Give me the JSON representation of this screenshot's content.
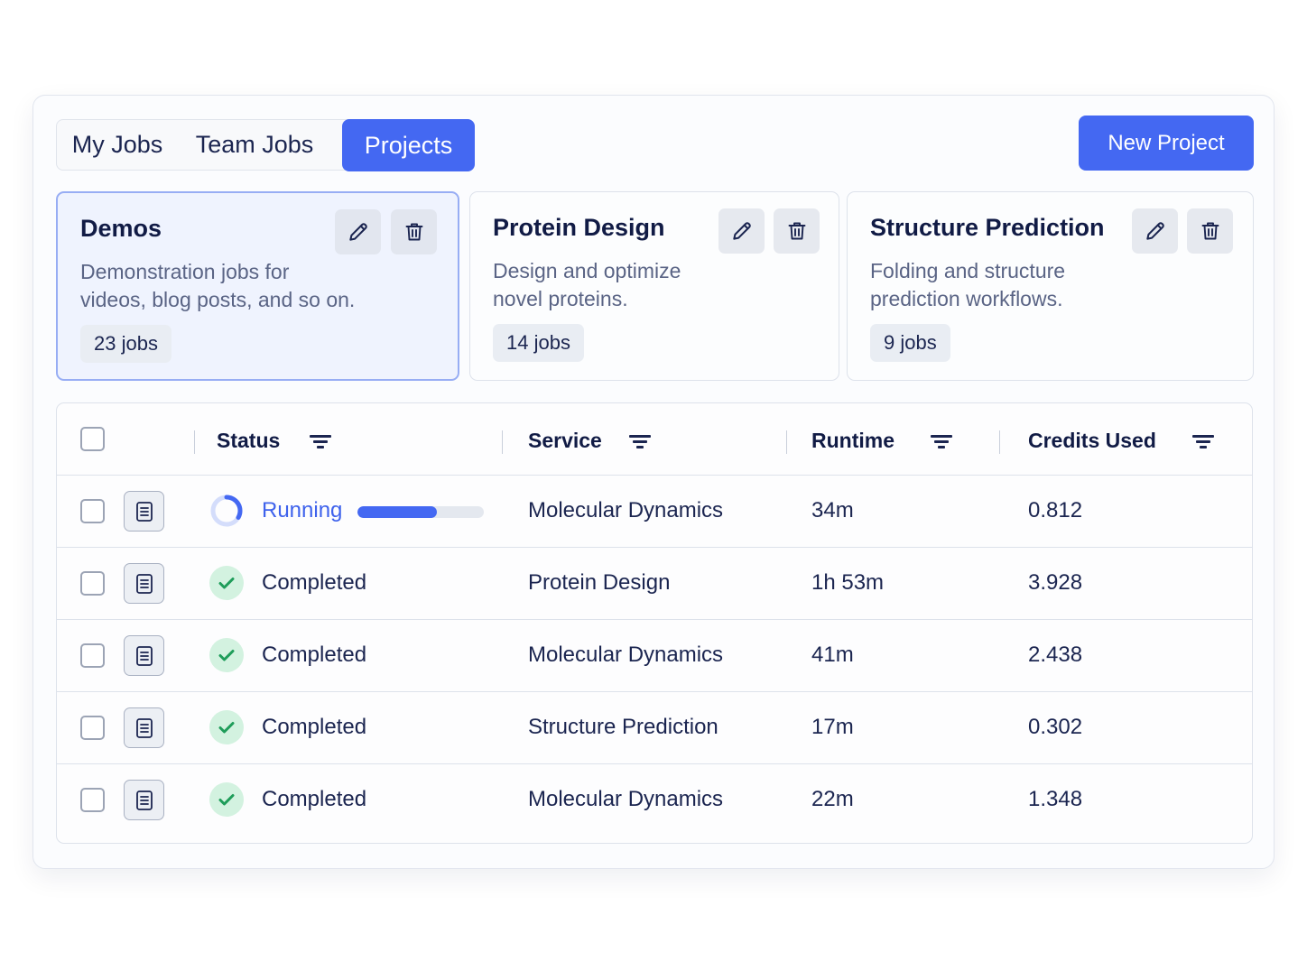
{
  "tabs": [
    {
      "label": "My Jobs",
      "active": false
    },
    {
      "label": "Team Jobs",
      "active": false
    },
    {
      "label": "Projects",
      "active": true
    }
  ],
  "new_project_label": "New Project",
  "projects": [
    {
      "title": "Demos",
      "desc_line1": "Demonstration jobs for",
      "desc_line2": "videos, blog posts, and so on.",
      "count": "23 jobs",
      "selected": true
    },
    {
      "title": "Protein Design",
      "desc_line1": "Design and optimize",
      "desc_line2": "novel proteins.",
      "count": "14 jobs",
      "selected": false
    },
    {
      "title": "Structure Prediction",
      "desc_line1": "Folding and structure",
      "desc_line2": "prediction workflows.",
      "count": "9 jobs",
      "selected": false
    }
  ],
  "table": {
    "headers": {
      "status": "Status",
      "service": "Service",
      "runtime": "Runtime",
      "credits": "Credits Used"
    },
    "rows": [
      {
        "status": "Running",
        "state": "running",
        "progress": 0.63,
        "service": "Molecular Dynamics",
        "runtime": "34m",
        "credits": "0.812"
      },
      {
        "status": "Completed",
        "state": "completed",
        "service": "Protein Design",
        "runtime": "1h 53m",
        "credits": "3.928"
      },
      {
        "status": "Completed",
        "state": "completed",
        "service": "Molecular Dynamics",
        "runtime": "41m",
        "credits": "2.438"
      },
      {
        "status": "Completed",
        "state": "completed",
        "service": "Structure Prediction",
        "runtime": "17m",
        "credits": "0.302"
      },
      {
        "status": "Completed",
        "state": "completed",
        "service": "Molecular Dynamics",
        "runtime": "22m",
        "credits": "1.348"
      }
    ]
  },
  "colors": {
    "accent": "#4468f2",
    "success_bg": "#d3f2e0",
    "success": "#1f9d5a"
  },
  "icons": {
    "edit": "pencil-icon",
    "delete": "trash-icon",
    "details": "document-icon",
    "filter": "filter-icon",
    "done": "checkmark-icon",
    "running": "spinner-icon"
  }
}
